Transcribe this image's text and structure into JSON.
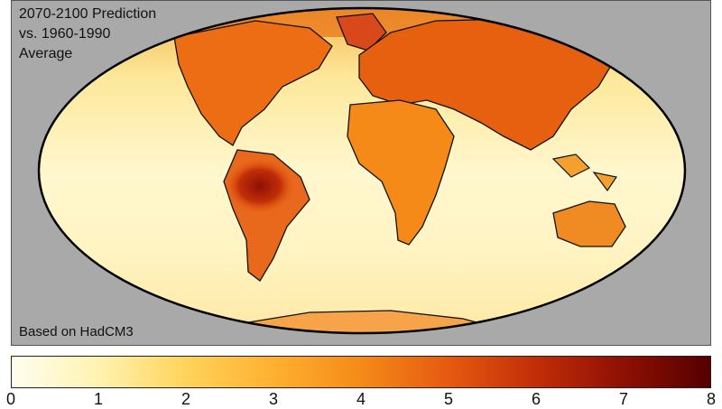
{
  "map": {
    "title_lines": [
      "2070-2100 Prediction",
      "vs. 1960-1990",
      "Average"
    ],
    "source_note": "Based on HadCM3",
    "projection": "mollweide-ellipse",
    "background_color": "#a9a9a9"
  },
  "colorbar": {
    "min": 0,
    "max": 8,
    "ticks": [
      "0",
      "1",
      "2",
      "3",
      "4",
      "5",
      "6",
      "7",
      "8"
    ],
    "colors": [
      "#fffdf0",
      "#fff3b0",
      "#ffd35a",
      "#ffb030",
      "#f58a18",
      "#e65a10",
      "#c22e08",
      "#8e1004",
      "#550000"
    ]
  }
}
